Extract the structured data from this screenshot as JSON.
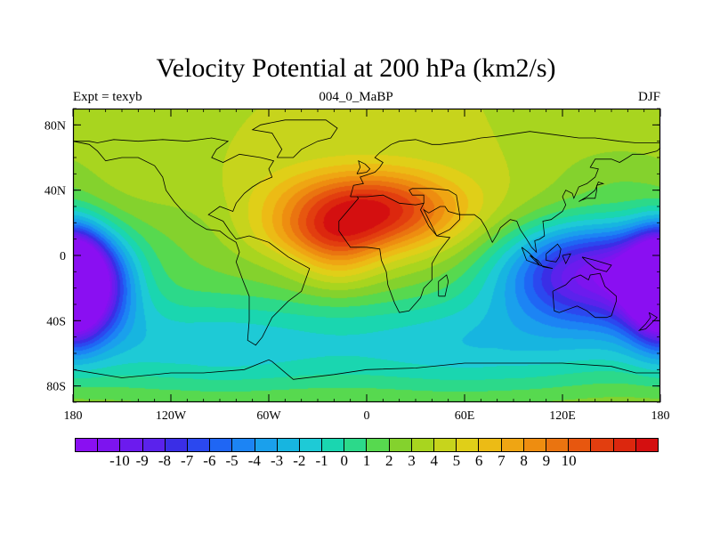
{
  "title": "Velocity Potential at 200 hPa (km2/s)",
  "subtitle_left": "Expt = texyb",
  "subtitle_center": "004_0_MaBP",
  "subtitle_right": "DJF",
  "chart_data": {
    "type": "heatmap",
    "title": "Velocity Potential at 200 hPa (km2/s)",
    "xlabel": "",
    "ylabel": "",
    "x_range": [
      -180,
      180
    ],
    "y_range": [
      -90,
      90
    ],
    "x_ticks": [
      {
        "value": -180,
        "label": "180"
      },
      {
        "value": -120,
        "label": "120W"
      },
      {
        "value": -60,
        "label": "60W"
      },
      {
        "value": 0,
        "label": "0"
      },
      {
        "value": 60,
        "label": "60E"
      },
      {
        "value": 120,
        "label": "120E"
      },
      {
        "value": 180,
        "label": "180"
      }
    ],
    "y_ticks": [
      {
        "value": 80,
        "label": "80N"
      },
      {
        "value": 40,
        "label": "40N"
      },
      {
        "value": 0,
        "label": "0"
      },
      {
        "value": -40,
        "label": "40S"
      },
      {
        "value": -80,
        "label": "80S"
      }
    ],
    "colorbar_labels": [
      "-10",
      "-9",
      "-8",
      "-7",
      "-6",
      "-5",
      "-4",
      "-3",
      "-2",
      "-1",
      "0",
      "1",
      "2",
      "3",
      "4",
      "5",
      "6",
      "7",
      "8",
      "9",
      "10"
    ],
    "colorbar_colors": [
      "#8a0ff2",
      "#7d14ef",
      "#6c1bee",
      "#5b22ec",
      "#3a2ee6",
      "#2b48ef",
      "#1f66f4",
      "#1c84f4",
      "#1aa0ec",
      "#17b5e0",
      "#1ecad6",
      "#1ad6b0",
      "#2cd98a",
      "#57d94f",
      "#84d22d",
      "#a8d51f",
      "#c7d41c",
      "#e0cf18",
      "#ecbb15",
      "#efa513",
      "#ee8d10",
      "#ea7410",
      "#e7570f",
      "#e23e0f",
      "#dc270e",
      "#d40f10"
    ],
    "field": {
      "background": 2.5,
      "features": [
        {
          "lon": 0,
          "lat": 28,
          "amp": 7.8,
          "slon": 38,
          "slat": 16
        },
        {
          "lon": -18,
          "lat": 2,
          "amp": 2.5,
          "slon": 18,
          "slat": 16
        },
        {
          "lon": -30,
          "lat": 12,
          "amp": 1.5,
          "slon": 30,
          "slat": 10
        },
        {
          "lon": 138,
          "lat": -10,
          "amp": -11,
          "slon": 40,
          "slat": 22
        },
        {
          "lon": -175,
          "lat": -18,
          "amp": -10,
          "slon": 20,
          "slat": 22
        },
        {
          "lon": 180,
          "lat": -18,
          "amp": -8.5,
          "slon": 12,
          "slat": 22
        },
        {
          "lon": -100,
          "lat": -55,
          "amp": -4.5,
          "slon": 70,
          "slat": 25
        },
        {
          "lon": 70,
          "lat": -55,
          "amp": -4.5,
          "slon": 70,
          "slat": 25
        },
        {
          "lon": -110,
          "lat": 10,
          "amp": -1.2,
          "slon": 40,
          "slat": 22
        },
        {
          "lon": 155,
          "lat": 50,
          "amp": -1.2,
          "slon": 30,
          "slat": 15
        }
      ]
    }
  },
  "coastlines": [
    [
      [
        -180,
        70
      ],
      [
        -170,
        68
      ],
      [
        -165,
        64
      ],
      [
        -160,
        58
      ],
      [
        -150,
        60
      ],
      [
        -140,
        60
      ],
      [
        -130,
        55
      ],
      [
        -125,
        48
      ],
      [
        -123,
        40
      ],
      [
        -118,
        33
      ],
      [
        -110,
        24
      ],
      [
        -105,
        20
      ],
      [
        -98,
        16
      ],
      [
        -90,
        15
      ],
      [
        -85,
        11
      ],
      [
        -80,
        8
      ],
      [
        -78,
        2
      ],
      [
        -80,
        -4
      ],
      [
        -76,
        -15
      ],
      [
        -72,
        -25
      ],
      [
        -72,
        -40
      ],
      [
        -73,
        -52
      ],
      [
        -68,
        -55
      ],
      [
        -64,
        -50
      ],
      [
        -58,
        -38
      ],
      [
        -48,
        -28
      ],
      [
        -40,
        -22
      ],
      [
        -35,
        -8
      ],
      [
        -48,
        -1
      ],
      [
        -60,
        8
      ],
      [
        -72,
        12
      ],
      [
        -80,
        10
      ],
      [
        -84,
        15
      ],
      [
        -88,
        21
      ],
      [
        -97,
        25
      ],
      [
        -90,
        30
      ],
      [
        -82,
        27
      ],
      [
        -80,
        32
      ],
      [
        -75,
        38
      ],
      [
        -70,
        42
      ],
      [
        -65,
        45
      ],
      [
        -58,
        48
      ],
      [
        -60,
        53
      ],
      [
        -57,
        58
      ],
      [
        -65,
        60
      ],
      [
        -78,
        62
      ],
      [
        -88,
        57
      ],
      [
        -95,
        60
      ],
      [
        -92,
        65
      ],
      [
        -85,
        70
      ],
      [
        -95,
        72
      ],
      [
        -110,
        70
      ],
      [
        -125,
        71
      ],
      [
        -140,
        70
      ],
      [
        -155,
        71
      ],
      [
        -165,
        69
      ],
      [
        -170,
        70
      ],
      [
        -180,
        70
      ]
    ],
    [
      [
        -55,
        60
      ],
      [
        -45,
        60
      ],
      [
        -40,
        65
      ],
      [
        -30,
        70
      ],
      [
        -22,
        72
      ],
      [
        -18,
        78
      ],
      [
        -25,
        83
      ],
      [
        -50,
        83
      ],
      [
        -65,
        80
      ],
      [
        -70,
        77
      ],
      [
        -58,
        75
      ],
      [
        -55,
        70
      ],
      [
        -52,
        65
      ],
      [
        -55,
        60
      ]
    ],
    [
      [
        -10,
        36
      ],
      [
        -8,
        43
      ],
      [
        -2,
        44
      ],
      [
        -4,
        48
      ],
      [
        5,
        51
      ],
      [
        8,
        54
      ],
      [
        10,
        57
      ],
      [
        5,
        60
      ],
      [
        8,
        63
      ],
      [
        15,
        68
      ],
      [
        20,
        70
      ],
      [
        30,
        71
      ],
      [
        40,
        68
      ],
      [
        45,
        68
      ],
      [
        60,
        70
      ],
      [
        70,
        72
      ],
      [
        80,
        73
      ],
      [
        100,
        76
      ],
      [
        115,
        74
      ],
      [
        130,
        72
      ],
      [
        140,
        72
      ],
      [
        155,
        70
      ],
      [
        165,
        69
      ],
      [
        180,
        69
      ]
    ],
    [
      [
        -10,
        36
      ],
      [
        -6,
        36
      ],
      [
        -5,
        35
      ],
      [
        -17,
        21
      ],
      [
        -17,
        15
      ],
      [
        -10,
        5
      ],
      [
        0,
        5
      ],
      [
        8,
        4
      ],
      [
        9,
        -3
      ],
      [
        12,
        -10
      ],
      [
        13,
        -18
      ],
      [
        17,
        -29
      ],
      [
        20,
        -35
      ],
      [
        26,
        -34
      ],
      [
        33,
        -26
      ],
      [
        35,
        -20
      ],
      [
        40,
        -15
      ],
      [
        40,
        -5
      ],
      [
        44,
        2
      ],
      [
        51,
        11
      ],
      [
        43,
        12
      ],
      [
        38,
        18
      ],
      [
        33,
        28
      ],
      [
        35,
        32
      ],
      [
        30,
        31
      ],
      [
        20,
        32
      ],
      [
        10,
        37
      ],
      [
        0,
        36
      ],
      [
        -10,
        36
      ]
    ],
    [
      [
        35,
        32
      ],
      [
        35,
        37
      ],
      [
        28,
        37
      ],
      [
        26,
        40
      ],
      [
        28,
        41
      ],
      [
        40,
        41
      ],
      [
        50,
        40
      ],
      [
        55,
        37
      ],
      [
        57,
        25
      ],
      [
        60,
        25
      ],
      [
        66,
        25
      ],
      [
        70,
        22
      ],
      [
        73,
        17
      ],
      [
        77,
        8
      ],
      [
        80,
        13
      ],
      [
        82,
        17
      ],
      [
        88,
        22
      ],
      [
        92,
        21
      ],
      [
        94,
        16
      ],
      [
        98,
        10
      ],
      [
        101,
        5
      ],
      [
        104,
        2
      ],
      [
        103,
        9
      ],
      [
        106,
        10
      ],
      [
        109,
        12
      ],
      [
        108,
        21
      ],
      [
        113,
        22
      ],
      [
        120,
        27
      ],
      [
        122,
        31
      ],
      [
        120,
        36
      ],
      [
        122,
        40
      ],
      [
        126,
        38
      ],
      [
        127,
        35
      ],
      [
        130,
        42
      ],
      [
        135,
        44
      ],
      [
        140,
        48
      ],
      [
        142,
        53
      ],
      [
        137,
        54
      ],
      [
        140,
        59
      ],
      [
        150,
        59
      ],
      [
        155,
        57
      ],
      [
        160,
        60
      ],
      [
        163,
        62
      ],
      [
        170,
        62
      ],
      [
        178,
        64
      ],
      [
        180,
        66
      ]
    ],
    [
      [
        43,
        12
      ],
      [
        51,
        16
      ],
      [
        57,
        22
      ],
      [
        57,
        25
      ],
      [
        50,
        27
      ],
      [
        48,
        30
      ],
      [
        45,
        30
      ],
      [
        38,
        26
      ],
      [
        35,
        28
      ],
      [
        43,
        12
      ]
    ],
    [
      [
        114,
        -22
      ],
      [
        115,
        -34
      ],
      [
        118,
        -35
      ],
      [
        129,
        -31
      ],
      [
        135,
        -34
      ],
      [
        140,
        -38
      ],
      [
        147,
        -38
      ],
      [
        150,
        -37
      ],
      [
        153,
        -28
      ],
      [
        153,
        -25
      ],
      [
        146,
        -19
      ],
      [
        143,
        -11
      ],
      [
        137,
        -12
      ],
      [
        136,
        -15
      ],
      [
        131,
        -12
      ],
      [
        126,
        -14
      ],
      [
        122,
        -18
      ],
      [
        114,
        -22
      ]
    ],
    [
      [
        -180,
        -70
      ],
      [
        -150,
        -75
      ],
      [
        -120,
        -72
      ],
      [
        -100,
        -72
      ],
      [
        -75,
        -70
      ],
      [
        -60,
        -64
      ],
      [
        -58,
        -65
      ],
      [
        -45,
        -76
      ],
      [
        -20,
        -73
      ],
      [
        0,
        -70
      ],
      [
        30,
        -69
      ],
      [
        60,
        -66
      ],
      [
        90,
        -66
      ],
      [
        120,
        -66
      ],
      [
        150,
        -68
      ],
      [
        165,
        -72
      ],
      [
        180,
        -72
      ]
    ],
    [
      [
        130,
        33
      ],
      [
        132,
        34
      ],
      [
        135,
        35
      ],
      [
        140,
        35
      ],
      [
        141,
        40
      ],
      [
        141,
        43
      ],
      [
        145,
        44
      ],
      [
        142,
        45
      ],
      [
        140,
        40
      ],
      [
        135,
        36
      ],
      [
        130,
        33
      ]
    ],
    [
      [
        95,
        5
      ],
      [
        99,
        2
      ],
      [
        104,
        -3
      ],
      [
        106,
        -6
      ],
      [
        98,
        -3
      ],
      [
        95,
        5
      ]
    ],
    [
      [
        132,
        -1
      ],
      [
        140,
        -3
      ],
      [
        150,
        -6
      ],
      [
        147,
        -10
      ],
      [
        140,
        -8
      ],
      [
        135,
        -4
      ],
      [
        132,
        -1
      ]
    ],
    [
      [
        44,
        -25
      ],
      [
        48,
        -25
      ],
      [
        50,
        -16
      ],
      [
        49,
        -12
      ],
      [
        44,
        -16
      ],
      [
        44,
        -25
      ]
    ],
    [
      [
        -6,
        50
      ],
      [
        0,
        51
      ],
      [
        2,
        53
      ],
      [
        -1,
        56
      ],
      [
        -5,
        58
      ],
      [
        -4,
        54
      ],
      [
        -6,
        50
      ]
    ],
    [
      [
        100,
        0
      ],
      [
        105,
        -3
      ],
      [
        108,
        -7
      ],
      [
        114,
        -8
      ],
      [
        106,
        -6
      ],
      [
        100,
        0
      ]
    ],
    [
      [
        110,
        1
      ],
      [
        117,
        7
      ],
      [
        119,
        4
      ],
      [
        118,
        -1
      ],
      [
        116,
        -4
      ],
      [
        110,
        -3
      ],
      [
        110,
        1
      ]
    ],
    [
      [
        120,
        0
      ],
      [
        125,
        1
      ],
      [
        122,
        -5
      ],
      [
        120,
        0
      ]
    ],
    [
      [
        173,
        -35
      ],
      [
        178,
        -38
      ],
      [
        175,
        -41
      ],
      [
        171,
        -45
      ],
      [
        167,
        -46
      ],
      [
        171,
        -42
      ],
      [
        174,
        -38
      ],
      [
        173,
        -35
      ]
    ]
  ]
}
